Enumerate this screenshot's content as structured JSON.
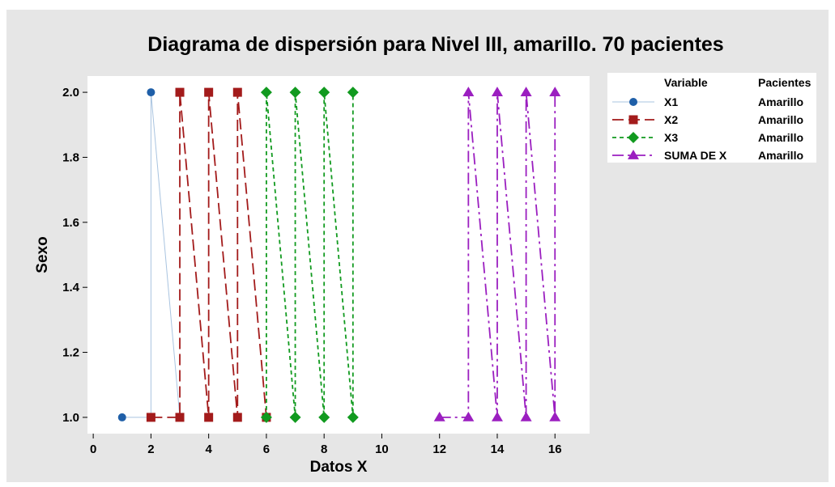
{
  "chart_data": {
    "type": "scatter",
    "title": "Diagrama de dispersión para Nivel III, amarillo. 70 pacientes",
    "xlabel": "Datos X",
    "ylabel": "Sexo",
    "xlim": [
      -0.2,
      17.2
    ],
    "ylim": [
      0.95,
      2.05
    ],
    "xticks": [
      0,
      2,
      4,
      6,
      8,
      10,
      12,
      14,
      16
    ],
    "yticks": [
      1.0,
      1.2,
      1.4,
      1.6,
      1.8,
      2.0
    ],
    "xtick_labels": [
      "0",
      "2",
      "4",
      "6",
      "8",
      "10",
      "12",
      "14",
      "16"
    ],
    "ytick_labels": [
      "1.0",
      "1.2",
      "1.4",
      "1.6",
      "1.8",
      "2.0"
    ],
    "legend": {
      "placement": "right",
      "header_variable": "Variable",
      "header_group": "Pacientes",
      "entries": [
        {
          "name": "X1",
          "group": "Amarillo"
        },
        {
          "name": "X2",
          "group": "Amarillo"
        },
        {
          "name": "X3",
          "group": "Amarillo"
        },
        {
          "name": "SUMA DE X",
          "group": "Amarillo"
        }
      ]
    },
    "series": [
      {
        "name": "X1",
        "marker": "circle",
        "color": "#1f5fa8",
        "line_color": "#a9c4e0",
        "dash": "",
        "points": [
          [
            1,
            1
          ],
          [
            2,
            1
          ],
          [
            2,
            2
          ],
          [
            3,
            1
          ]
        ]
      },
      {
        "name": "X2",
        "marker": "square",
        "color": "#a31b1b",
        "line_color": "#a31b1b",
        "dash": "14,6",
        "points": [
          [
            2,
            1
          ],
          [
            3,
            1
          ],
          [
            3,
            2
          ],
          [
            4,
            1
          ],
          [
            4,
            2
          ],
          [
            5,
            1
          ],
          [
            5,
            2
          ],
          [
            6,
            1
          ]
        ]
      },
      {
        "name": "X3",
        "marker": "diamond",
        "color": "#119a1f",
        "line_color": "#119a1f",
        "dash": "5,4",
        "points": [
          [
            6,
            1
          ],
          [
            6,
            2
          ],
          [
            7,
            1
          ],
          [
            7,
            2
          ],
          [
            8,
            1
          ],
          [
            8,
            2
          ],
          [
            9,
            1
          ],
          [
            9,
            2
          ]
        ]
      },
      {
        "name": "SUMA DE X",
        "marker": "triangle",
        "color": "#9b1fc0",
        "line_color": "#9b1fc0",
        "dash": "14,5,3,5",
        "points": [
          [
            12,
            1
          ],
          [
            13,
            1
          ],
          [
            13,
            2
          ],
          [
            14,
            1
          ],
          [
            14,
            2
          ],
          [
            15,
            1
          ],
          [
            15,
            2
          ],
          [
            16,
            1
          ],
          [
            16,
            2
          ]
        ]
      }
    ]
  }
}
